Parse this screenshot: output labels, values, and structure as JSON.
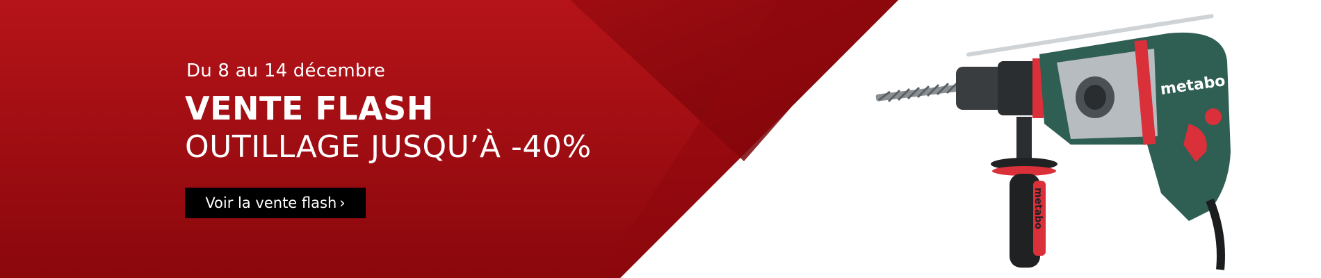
{
  "banner": {
    "date_text": "Du 8 au 14 décembre",
    "title": "VENTE FLASH",
    "subtitle": "OUTILLAGE JUSQU’À -40%",
    "cta_label": "Voir la vente flash",
    "cta_chevron": "›",
    "brand_on_drill": "metabo",
    "brand_on_handle": "metabo"
  },
  "colors": {
    "red_light": "#b51419",
    "red_dark": "#7c0409",
    "drill_body": "#2f5e52",
    "drill_accent": "#d9303a",
    "cta_bg": "#000000"
  }
}
